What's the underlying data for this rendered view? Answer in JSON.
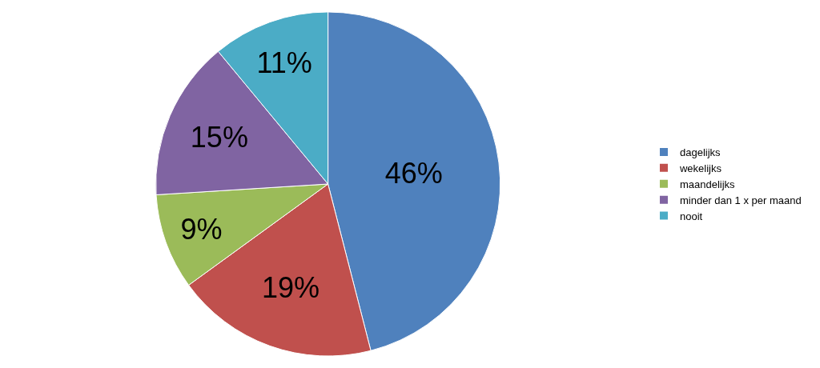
{
  "chart_data": {
    "type": "pie",
    "categories": [
      "dagelijks",
      "wekelijks",
      "maandelijks",
      "minder dan 1 x per maand",
      "nooit"
    ],
    "values": [
      46,
      19,
      9,
      15,
      11
    ],
    "colors": [
      "#4f81bd",
      "#c0504d",
      "#9bbb59",
      "#8064a2",
      "#4bacc6"
    ],
    "value_labels": [
      "46%",
      "19%",
      "9%",
      "15%",
      "11%"
    ],
    "legend": "right"
  }
}
